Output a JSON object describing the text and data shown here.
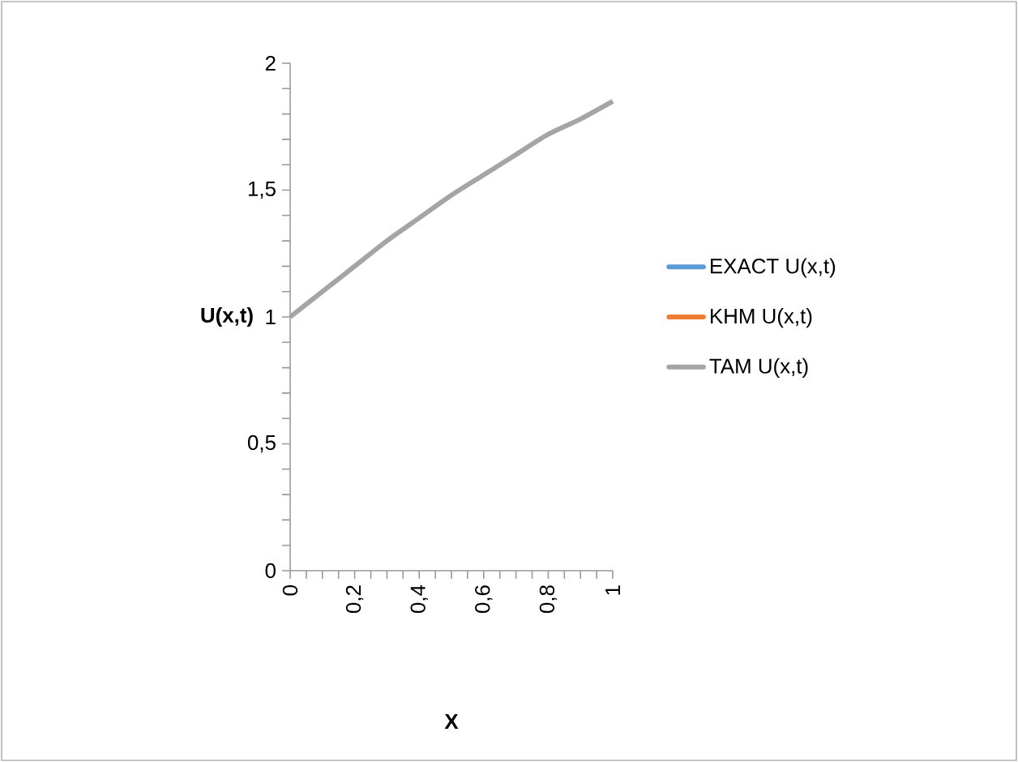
{
  "chart_data": {
    "type": "line",
    "xlabel": "X",
    "ylabel": "U(x,t)",
    "x": [
      0,
      0.1,
      0.2,
      0.3,
      0.4,
      0.5,
      0.6,
      0.7,
      0.8,
      0.9,
      1
    ],
    "series": [
      {
        "name": "EXACT U(x,t)",
        "color": "#5b9bd5",
        "values": [
          null,
          null,
          null,
          null,
          null,
          null,
          null,
          null,
          null,
          null,
          null
        ]
      },
      {
        "name": "KHM U(x,t)",
        "color": "#ed7d31",
        "values": [
          null,
          null,
          null,
          null,
          null,
          null,
          null,
          null,
          null,
          null,
          null
        ]
      },
      {
        "name": "TAM U(x,t)",
        "color": "#a5a5a5",
        "values": [
          1,
          1.1,
          1.2,
          1.3,
          1.39,
          1.48,
          1.56,
          1.64,
          1.72,
          1.78,
          1.85
        ]
      }
    ],
    "xlim": [
      0,
      1
    ],
    "ylim": [
      0,
      2
    ],
    "xticks": [
      0,
      {
        "value": 0.05,
        "label": null
      },
      {
        "value": 0.1,
        "label": null
      },
      {
        "value": 0.15,
        "label": null
      },
      {
        "value": 0.2,
        "label": "0,2"
      },
      {
        "value": 0.25,
        "label": null
      },
      {
        "value": 0.3,
        "label": null
      },
      {
        "value": 0.35,
        "label": null
      },
      {
        "value": 0.4,
        "label": "0,4"
      },
      {
        "value": 0.45,
        "label": null
      },
      {
        "value": 0.5,
        "label": null
      },
      {
        "value": 0.55,
        "label": null
      },
      {
        "value": 0.6,
        "label": "0,6"
      },
      {
        "value": 0.65,
        "label": null
      },
      {
        "value": 0.7,
        "label": null
      },
      {
        "value": 0.75,
        "label": null
      },
      {
        "value": 0.8,
        "label": "0,8"
      },
      {
        "value": 0.85,
        "label": null
      },
      {
        "value": 0.9,
        "label": null
      },
      {
        "value": 0.95,
        "label": null
      },
      1
    ],
    "yticks": [
      0,
      {
        "value": 0.1,
        "label": null
      },
      {
        "value": 0.2,
        "label": null
      },
      {
        "value": 0.3,
        "label": null
      },
      {
        "value": 0.4,
        "label": null
      },
      {
        "value": 0.5,
        "label": "0,5"
      },
      {
        "value": 0.6,
        "label": null
      },
      {
        "value": 0.7,
        "label": null
      },
      {
        "value": 0.8,
        "label": null
      },
      {
        "value": 0.9,
        "label": null
      },
      1,
      {
        "value": 1.1,
        "label": null
      },
      {
        "value": 1.2,
        "label": null
      },
      {
        "value": 1.3,
        "label": null
      },
      {
        "value": 1.4,
        "label": null
      },
      {
        "value": 1.5,
        "label": "1,5"
      },
      {
        "value": 1.6,
        "label": null
      },
      {
        "value": 1.7,
        "label": null
      },
      {
        "value": 1.8,
        "label": null
      },
      {
        "value": 1.9,
        "label": null
      },
      2
    ],
    "grid": false,
    "legend": "right",
    "marker": "none",
    "line_style": "solid"
  }
}
